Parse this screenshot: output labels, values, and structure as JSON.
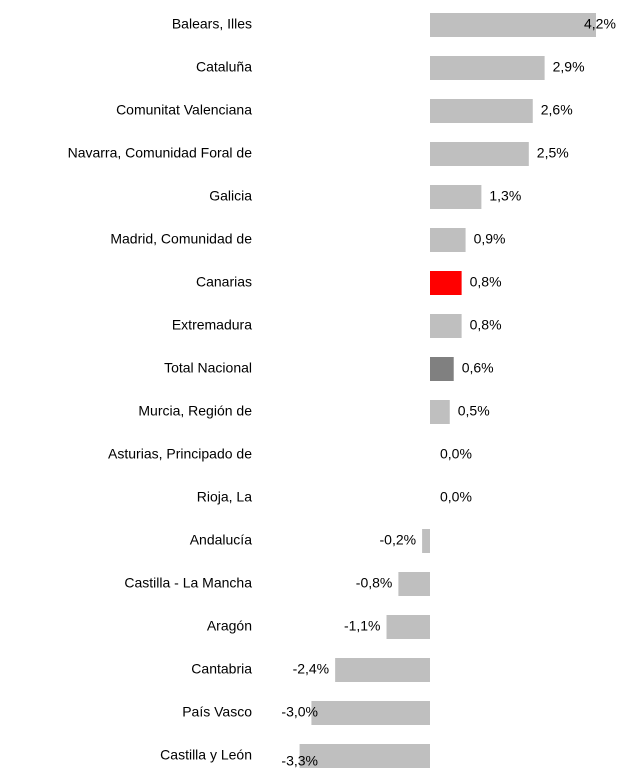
{
  "chart_data": {
    "type": "bar",
    "orientation": "horizontal",
    "categories": [
      "Balears, Illes",
      "Cataluña",
      "Comunitat Valenciana",
      "Navarra, Comunidad Foral de",
      "Galicia",
      "Madrid, Comunidad de",
      "Canarias",
      "Extremadura",
      "Total Nacional",
      "Murcia, Región de",
      "Asturias, Principado de",
      "Rioja, La",
      "Andalucía",
      "Castilla - La Mancha",
      "Aragón",
      "Cantabria",
      "País Vasco",
      "Castilla y León"
    ],
    "values": [
      4.2,
      2.9,
      2.6,
      2.5,
      1.3,
      0.9,
      0.8,
      0.8,
      0.6,
      0.5,
      0.0,
      0.0,
      -0.2,
      -0.8,
      -1.1,
      -2.4,
      -3.0,
      -3.3
    ],
    "value_labels": [
      "4,2%",
      "2,9%",
      "2,6%",
      "2,5%",
      "1,3%",
      "0,9%",
      "0,8%",
      "0,8%",
      "0,6%",
      "0,5%",
      "0,0%",
      "0,0%",
      "-0,2%",
      "-0,8%",
      "-1,1%",
      "-2,4%",
      "-3,0%",
      "-3,3%"
    ],
    "colors": [
      "#bfbfbf",
      "#bfbfbf",
      "#bfbfbf",
      "#bfbfbf",
      "#bfbfbf",
      "#bfbfbf",
      "#ff0000",
      "#bfbfbf",
      "#808080",
      "#bfbfbf",
      "#bfbfbf",
      "#bfbfbf",
      "#bfbfbf",
      "#bfbfbf",
      "#bfbfbf",
      "#bfbfbf",
      "#bfbfbf",
      "#bfbfbf"
    ]
  }
}
